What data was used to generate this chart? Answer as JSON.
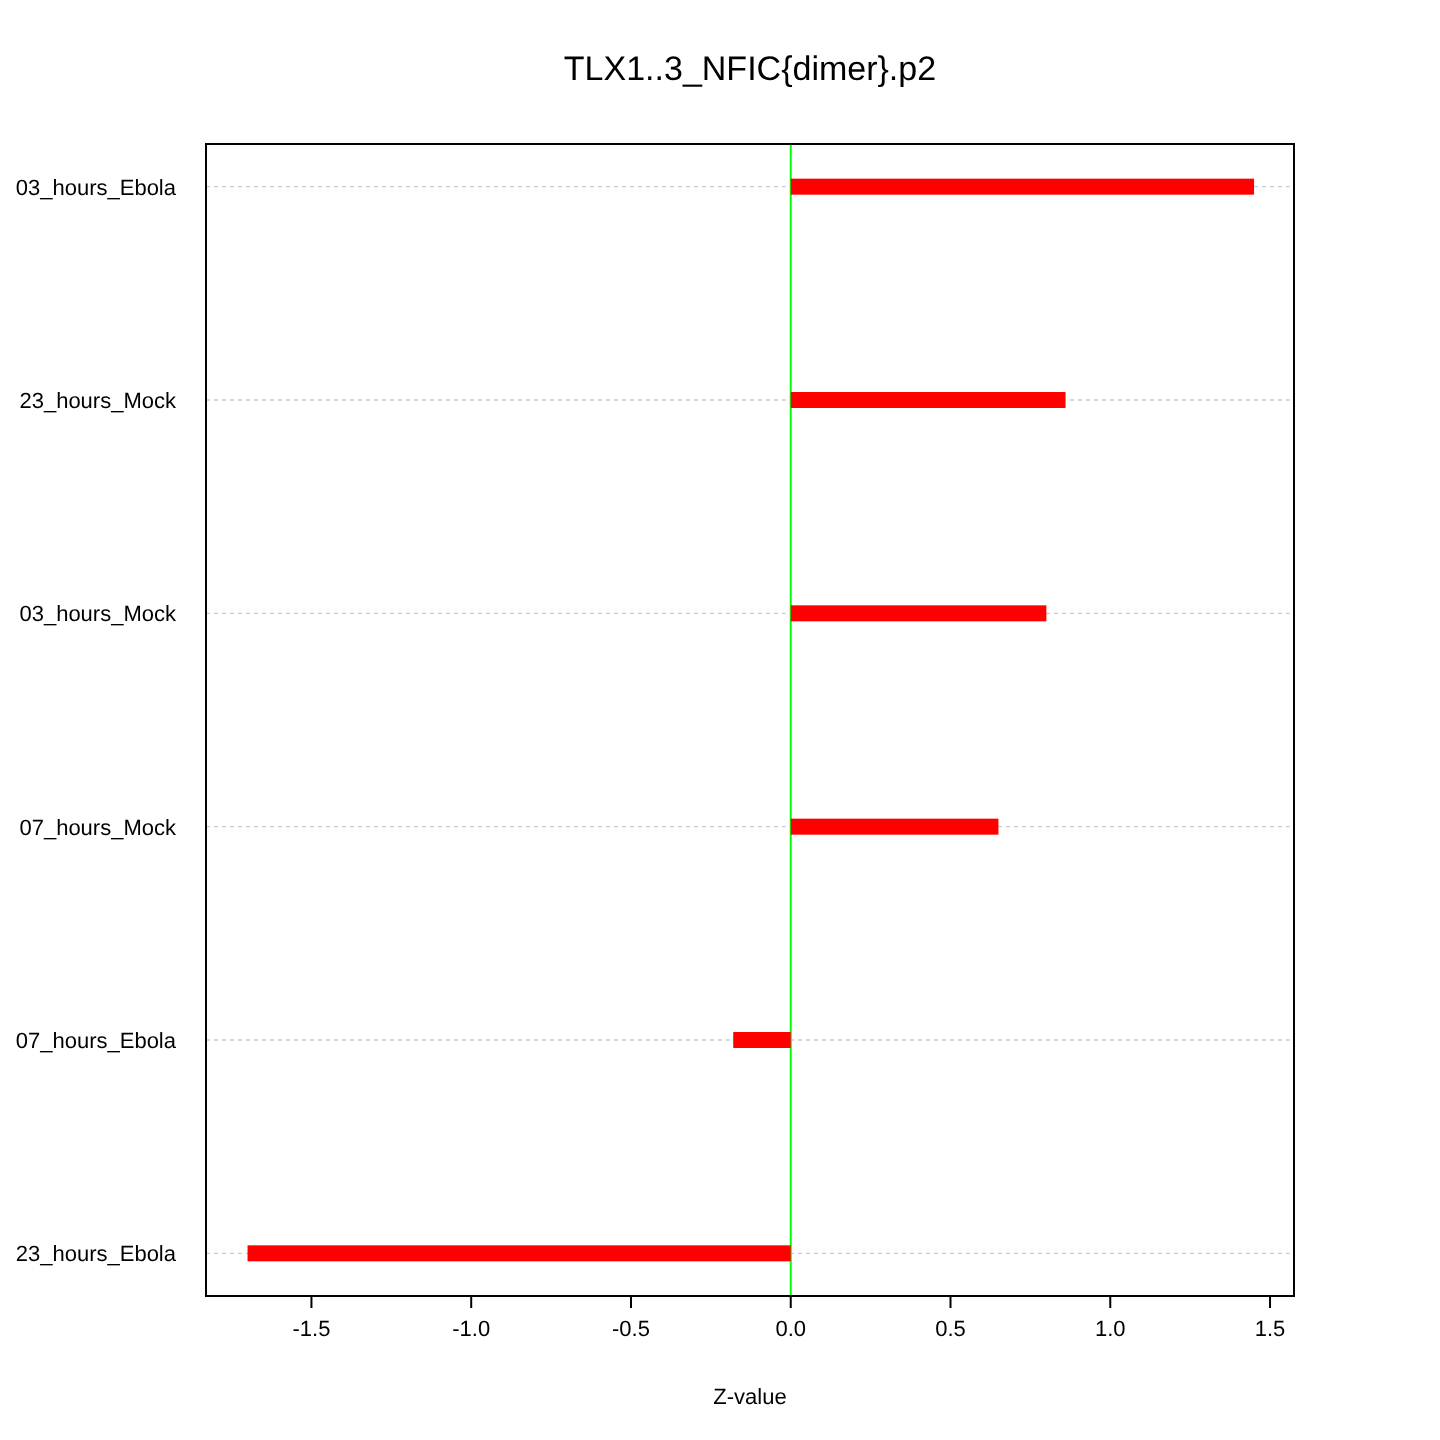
{
  "chart_data": {
    "type": "bar",
    "orientation": "horizontal",
    "title": "TLX1..3_NFIC{dimer}.p2",
    "xlabel": "Z-value",
    "categories": [
      "03_hours_Ebola",
      "23_hours_Mock",
      "03_hours_Mock",
      "07_hours_Mock",
      "07_hours_Ebola",
      "23_hours_Ebola"
    ],
    "values": [
      1.45,
      0.86,
      0.8,
      0.65,
      -0.18,
      -1.7
    ],
    "color": "#ff0000",
    "xlim": [
      -1.83,
      1.575
    ],
    "xticks": [
      {
        "value": -1.5,
        "label": "-1.5"
      },
      {
        "value": -1,
        "label": "-1.0"
      },
      {
        "value": -0.5,
        "label": "-0.5"
      },
      {
        "value": 0,
        "label": "0.0"
      },
      {
        "value": 0.5,
        "label": "0.5"
      },
      {
        "value": 1,
        "label": "1.0"
      },
      {
        "value": 1.5,
        "label": "1.5"
      }
    ],
    "grid": "y",
    "ref_lines": [
      {
        "axis": "x",
        "value": 0,
        "color": "#00ff00"
      }
    ]
  }
}
